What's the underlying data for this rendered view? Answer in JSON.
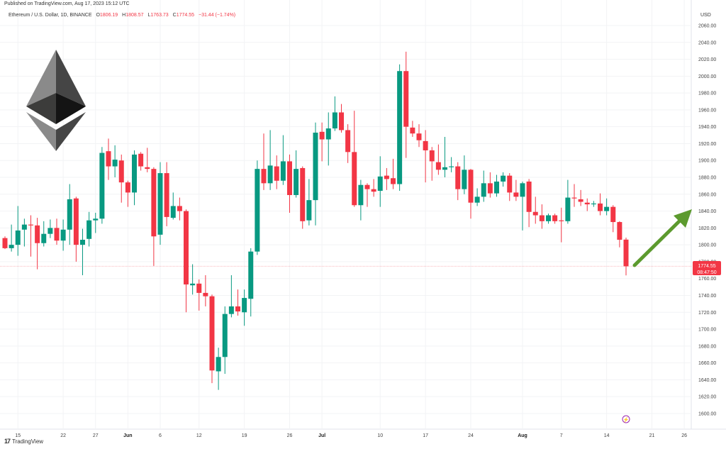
{
  "header": {
    "published": "Published on TradingView.com, Aug 17, 2023 15:12 UTC",
    "symbol": "Ethereum / U.S. Dollar, 1D, BINANCE",
    "open_label": "O",
    "open": "1806.19",
    "high_label": "H",
    "high": "1808.57",
    "low_label": "L",
    "low": "1763.73",
    "close_label": "C",
    "close": "1774.55",
    "change": "−31.44 (−1.74%)"
  },
  "currency": "USD",
  "last_price": {
    "price": "1774.55",
    "countdown": "08:47:50"
  },
  "brand": {
    "logo_text": "17",
    "name": "TradingView"
  },
  "icons": {
    "logo": "ethereum-logo-icon",
    "arrow": "green-up-arrow-icon",
    "event": "lightning-icon"
  },
  "colors": {
    "up": "#089981",
    "down": "#F23645",
    "arrow": "#5c9a2e",
    "event": "#9c27b0"
  },
  "chart_data": {
    "type": "candlestick",
    "title": "",
    "ylabel": "USD",
    "ylim": [
      1600,
      2060
    ],
    "y_tick_step": 20,
    "grid": true,
    "x_ticks": [
      {
        "label": "15",
        "date": "2023-05-15"
      },
      {
        "label": "22",
        "date": "2023-05-22"
      },
      {
        "label": "27",
        "date": "2023-05-27"
      },
      {
        "label": "Jun",
        "date": "2023-06-01",
        "bold": true
      },
      {
        "label": "6",
        "date": "2023-06-06"
      },
      {
        "label": "12",
        "date": "2023-06-12"
      },
      {
        "label": "19",
        "date": "2023-06-19"
      },
      {
        "label": "26",
        "date": "2023-06-26"
      },
      {
        "label": "Jul",
        "date": "2023-07-01",
        "bold": true
      },
      {
        "label": "10",
        "date": "2023-07-10"
      },
      {
        "label": "17",
        "date": "2023-07-17"
      },
      {
        "label": "24",
        "date": "2023-07-24"
      },
      {
        "label": "Aug",
        "date": "2023-08-01",
        "bold": true
      },
      {
        "label": "7",
        "date": "2023-08-07"
      },
      {
        "label": "14",
        "date": "2023-08-14"
      },
      {
        "label": "21",
        "date": "2023-08-21"
      },
      {
        "label": "26",
        "date": "2023-08-26"
      }
    ],
    "columns": [
      "date",
      "open",
      "high",
      "low",
      "close"
    ],
    "candles": [
      [
        "2023-05-13",
        1808,
        1810,
        1795,
        1796
      ],
      [
        "2023-05-14",
        1796,
        1824,
        1792,
        1800
      ],
      [
        "2023-05-15",
        1800,
        1846,
        1787,
        1817
      ],
      [
        "2023-05-16",
        1818,
        1831,
        1798,
        1824
      ],
      [
        "2023-05-17",
        1824,
        1835,
        1786,
        1823
      ],
      [
        "2023-05-18",
        1823,
        1832,
        1771,
        1802
      ],
      [
        "2023-05-19",
        1802,
        1828,
        1798,
        1813
      ],
      [
        "2023-05-20",
        1813,
        1830,
        1808,
        1820
      ],
      [
        "2023-05-21",
        1820,
        1831,
        1800,
        1805
      ],
      [
        "2023-05-22",
        1805,
        1830,
        1793,
        1818
      ],
      [
        "2023-05-23",
        1818,
        1872,
        1800,
        1854
      ],
      [
        "2023-05-24",
        1855,
        1857,
        1780,
        1800
      ],
      [
        "2023-05-25",
        1800,
        1819,
        1764,
        1806
      ],
      [
        "2023-05-26",
        1807,
        1839,
        1798,
        1829
      ],
      [
        "2023-05-27",
        1829,
        1838,
        1814,
        1831
      ],
      [
        "2023-05-28",
        1831,
        1916,
        1825,
        1909
      ],
      [
        "2023-05-29",
        1911,
        1926,
        1877,
        1893
      ],
      [
        "2023-05-30",
        1893,
        1918,
        1880,
        1901
      ],
      [
        "2023-05-31",
        1900,
        1907,
        1850,
        1874
      ],
      [
        "2023-06-01",
        1874,
        1876,
        1845,
        1862
      ],
      [
        "2023-06-02",
        1862,
        1912,
        1847,
        1907
      ],
      [
        "2023-06-03",
        1908,
        1910,
        1888,
        1893
      ],
      [
        "2023-06-04",
        1892,
        1915,
        1886,
        1890
      ],
      [
        "2023-06-05",
        1890,
        1892,
        1775,
        1810
      ],
      [
        "2023-06-06",
        1812,
        1898,
        1800,
        1885
      ],
      [
        "2023-06-07",
        1885,
        1898,
        1822,
        1833
      ],
      [
        "2023-06-08",
        1832,
        1862,
        1830,
        1846
      ],
      [
        "2023-06-09",
        1846,
        1856,
        1829,
        1840
      ],
      [
        "2023-06-10",
        1840,
        1842,
        1720,
        1753
      ],
      [
        "2023-06-11",
        1752,
        1777,
        1741,
        1754
      ],
      [
        "2023-06-12",
        1754,
        1759,
        1722,
        1743
      ],
      [
        "2023-06-13",
        1743,
        1764,
        1727,
        1739
      ],
      [
        "2023-06-14",
        1739,
        1741,
        1636,
        1651
      ],
      [
        "2023-06-15",
        1650,
        1678,
        1628,
        1667
      ],
      [
        "2023-06-16",
        1667,
        1727,
        1647,
        1718
      ],
      [
        "2023-06-17",
        1718,
        1764,
        1714,
        1727
      ],
      [
        "2023-06-18",
        1727,
        1747,
        1716,
        1721
      ],
      [
        "2023-06-19",
        1720,
        1747,
        1704,
        1737
      ],
      [
        "2023-06-20",
        1736,
        1796,
        1715,
        1792
      ],
      [
        "2023-06-21",
        1792,
        1900,
        1788,
        1890
      ],
      [
        "2023-06-22",
        1890,
        1932,
        1865,
        1873
      ],
      [
        "2023-06-23",
        1873,
        1936,
        1865,
        1894
      ],
      [
        "2023-06-24",
        1893,
        1906,
        1866,
        1876
      ],
      [
        "2023-06-25",
        1876,
        1930,
        1871,
        1899
      ],
      [
        "2023-06-26",
        1899,
        1907,
        1838,
        1859
      ],
      [
        "2023-06-27",
        1859,
        1912,
        1856,
        1890
      ],
      [
        "2023-06-28",
        1891,
        1893,
        1819,
        1828
      ],
      [
        "2023-06-29",
        1829,
        1878,
        1823,
        1853
      ],
      [
        "2023-06-30",
        1853,
        1945,
        1823,
        1933
      ],
      [
        "2023-07-01",
        1934,
        1945,
        1899,
        1925
      ],
      [
        "2023-07-02",
        1925,
        1957,
        1894,
        1938
      ],
      [
        "2023-07-03",
        1938,
        1976,
        1935,
        1957
      ],
      [
        "2023-07-04",
        1957,
        1967,
        1933,
        1936
      ],
      [
        "2023-07-05",
        1936,
        1943,
        1897,
        1910
      ],
      [
        "2023-07-06",
        1910,
        1959,
        1845,
        1847
      ],
      [
        "2023-07-07",
        1847,
        1877,
        1829,
        1871
      ],
      [
        "2023-07-08",
        1871,
        1873,
        1845,
        1866
      ],
      [
        "2023-07-09",
        1866,
        1878,
        1857,
        1863
      ],
      [
        "2023-07-10",
        1864,
        1905,
        1845,
        1881
      ],
      [
        "2023-07-11",
        1882,
        1891,
        1865,
        1878
      ],
      [
        "2023-07-12",
        1879,
        1902,
        1866,
        1872
      ],
      [
        "2023-07-13",
        1872,
        2014,
        1864,
        2006
      ],
      [
        "2023-07-14",
        2006,
        2029,
        1903,
        1940
      ],
      [
        "2023-07-15",
        1939,
        1947,
        1928,
        1932
      ],
      [
        "2023-07-16",
        1932,
        1943,
        1916,
        1924
      ],
      [
        "2023-07-17",
        1923,
        1936,
        1874,
        1912
      ],
      [
        "2023-07-18",
        1912,
        1916,
        1876,
        1899
      ],
      [
        "2023-07-19",
        1898,
        1919,
        1883,
        1889
      ],
      [
        "2023-07-20",
        1889,
        1928,
        1880,
        1892
      ],
      [
        "2023-07-21",
        1892,
        1904,
        1886,
        1893
      ],
      [
        "2023-07-22",
        1893,
        1898,
        1853,
        1866
      ],
      [
        "2023-07-23",
        1866,
        1906,
        1860,
        1889
      ],
      [
        "2023-07-24",
        1889,
        1890,
        1831,
        1850
      ],
      [
        "2023-07-25",
        1850,
        1867,
        1846,
        1857
      ],
      [
        "2023-07-26",
        1857,
        1888,
        1851,
        1873
      ],
      [
        "2023-07-27",
        1873,
        1886,
        1856,
        1861
      ],
      [
        "2023-07-28",
        1861,
        1883,
        1857,
        1875
      ],
      [
        "2023-07-29",
        1875,
        1886,
        1869,
        1882
      ],
      [
        "2023-07-30",
        1882,
        1885,
        1852,
        1862
      ],
      [
        "2023-07-31",
        1862,
        1877,
        1852,
        1857
      ],
      [
        "2023-08-01",
        1857,
        1875,
        1817,
        1873
      ],
      [
        "2023-08-02",
        1875,
        1878,
        1821,
        1839
      ],
      [
        "2023-08-03",
        1839,
        1857,
        1825,
        1835
      ],
      [
        "2023-08-04",
        1835,
        1848,
        1819,
        1828
      ],
      [
        "2023-08-05",
        1828,
        1837,
        1825,
        1835
      ],
      [
        "2023-08-06",
        1835,
        1837,
        1825,
        1828
      ],
      [
        "2023-08-07",
        1829,
        1844,
        1803,
        1828
      ],
      [
        "2023-08-08",
        1828,
        1877,
        1825,
        1856
      ],
      [
        "2023-08-09",
        1856,
        1872,
        1845,
        1855
      ],
      [
        "2023-08-10",
        1854,
        1865,
        1846,
        1851
      ],
      [
        "2023-08-11",
        1850,
        1855,
        1840,
        1848
      ],
      [
        "2023-08-12",
        1848,
        1852,
        1845,
        1849
      ],
      [
        "2023-08-13",
        1849,
        1861,
        1835,
        1840
      ],
      [
        "2023-08-14",
        1840,
        1855,
        1835,
        1845
      ],
      [
        "2023-08-15",
        1845,
        1847,
        1815,
        1827
      ],
      [
        "2023-08-16",
        1827,
        1828,
        1797,
        1806
      ],
      [
        "2023-08-17",
        1806.19,
        1808.57,
        1763.73,
        1774.55
      ]
    ]
  }
}
